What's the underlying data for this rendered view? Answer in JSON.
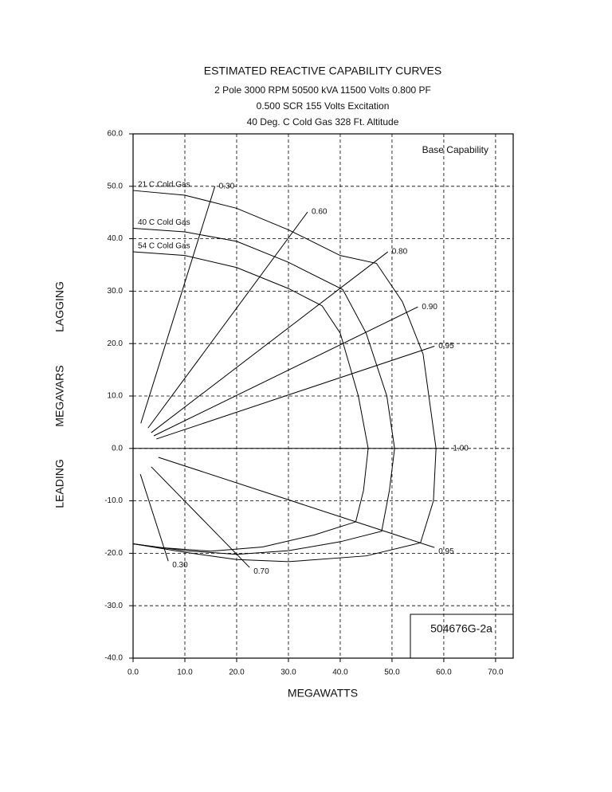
{
  "chart_data": {
    "type": "line",
    "title": "ESTIMATED REACTIVE CAPABILITY CURVES",
    "subtitle": [
      "2 Pole  3000 RPM   50500 kVA 11500 Volts 0.800 PF",
      "0.500 SCR  155 Volts Excitation",
      "40 Deg. C Cold Gas   328 Ft. Altitude"
    ],
    "x_label": "MEGAWATTS",
    "y_labels": [
      "LEADING",
      "MEGAVARS",
      "LAGGING"
    ],
    "annotations": [
      "Base Capability",
      "504676G-2a"
    ],
    "xlim": [
      0,
      73.4
    ],
    "ylim": [
      -40,
      60
    ],
    "grid": true,
    "xticks": [
      {
        "value": 0,
        "label": "0.0"
      },
      {
        "value": 10,
        "label": "10.0"
      },
      {
        "value": 20,
        "label": "20.0"
      },
      {
        "value": 30,
        "label": "30.0"
      },
      {
        "value": 40,
        "label": "40.0"
      },
      {
        "value": 50,
        "label": "50.0"
      },
      {
        "value": 60,
        "label": "60.0"
      },
      {
        "value": 70,
        "label": "70.0"
      }
    ],
    "yticks": [
      {
        "value": -40,
        "label": "-40.0"
      },
      {
        "value": -30,
        "label": "-30.0"
      },
      {
        "value": -20,
        "label": "-20.0"
      },
      {
        "value": -10,
        "label": "-10.0"
      },
      {
        "value": 0,
        "label": "0.0"
      },
      {
        "value": 10,
        "label": "10.0"
      },
      {
        "value": 20,
        "label": "20.0"
      },
      {
        "value": 30,
        "label": "30.0"
      },
      {
        "value": 40,
        "label": "40.0"
      },
      {
        "value": 50,
        "label": "50.0"
      },
      {
        "value": 60,
        "label": "60.0"
      }
    ],
    "series": [
      {
        "name": "21 C Cold Gas",
        "color": "#000000",
        "x": [
          0,
          10,
          20,
          30,
          40,
          47,
          52,
          56,
          58.5,
          58,
          55.5,
          45,
          30,
          20,
          10,
          0
        ],
        "y": [
          49.2,
          48.3,
          45.8,
          41.7,
          36.8,
          35.3,
          28,
          18,
          0,
          -10,
          -18,
          -20.5,
          -21.6,
          -21.2,
          -19.8,
          -18.2
        ]
      },
      {
        "name": "40 C Cold Gas",
        "color": "#000000",
        "x": [
          0,
          10,
          20,
          30,
          40.5,
          45,
          49,
          50.5,
          49.5,
          48,
          40,
          30,
          20,
          10,
          0
        ],
        "y": [
          42,
          41.3,
          39.5,
          35.5,
          30.3,
          22,
          10,
          0,
          -8,
          -15.8,
          -17.8,
          -19.5,
          -20.2,
          -19.5,
          -18.2
        ]
      },
      {
        "name": "54 C Cold Gas",
        "color": "#000000",
        "x": [
          0,
          10,
          20,
          30,
          36.5,
          40,
          43.5,
          45.4,
          44.5,
          43,
          35,
          25,
          15,
          5,
          0
        ],
        "y": [
          37.5,
          36.8,
          34.5,
          30.5,
          27.2,
          22,
          10,
          0,
          -8,
          -14,
          -16.5,
          -18.8,
          -19.6,
          -18.9,
          -18.2
        ]
      },
      {
        "name": "0.30",
        "color": "#000000",
        "x": [
          1.5,
          15.8
        ],
        "y": [
          4.8,
          50
        ]
      },
      {
        "name": "0.60",
        "color": "#000000",
        "x": [
          2.9,
          33.7
        ],
        "y": [
          3.9,
          45.1
        ]
      },
      {
        "name": "0.80",
        "color": "#000000",
        "x": [
          3.5,
          49.2
        ],
        "y": [
          3,
          37.5
        ]
      },
      {
        "name": "0.90",
        "color": "#000000",
        "x": [
          4,
          55
        ],
        "y": [
          2.4,
          27
        ]
      },
      {
        "name": "0.95",
        "color": "#000000",
        "x": [
          4.5,
          58.2
        ],
        "y": [
          1.8,
          19.5
        ]
      },
      {
        "name": "1.00",
        "color": "#000000",
        "x": [
          0,
          61
        ],
        "y": [
          0,
          0
        ]
      },
      {
        "name": "0.95",
        "color": "#000000",
        "x": [
          4.9,
          58.2
        ],
        "y": [
          -1.7,
          -18.9
        ]
      },
      {
        "name": "0.70",
        "color": "#000000",
        "x": [
          3.5,
          22.5
        ],
        "y": [
          -3.5,
          -22.7
        ]
      },
      {
        "name": "0.30",
        "color": "#000000",
        "x": [
          1.4,
          6.8
        ],
        "y": [
          -4.9,
          -21.5
        ]
      }
    ]
  }
}
